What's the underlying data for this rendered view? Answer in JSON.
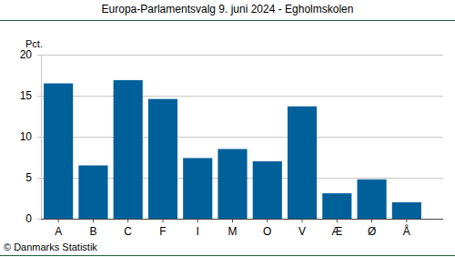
{
  "chart_data": {
    "type": "bar",
    "title": "Europa-Parlamentsvalg 9. juni 2024 - Egholmskolen",
    "ylabel": "Pct.",
    "annotations": [
      "© Danmarks Statistik"
    ],
    "categories": [
      "A",
      "B",
      "C",
      "F",
      "I",
      "M",
      "O",
      "V",
      "Æ",
      "Ø",
      "Å"
    ],
    "values": [
      16.5,
      6.5,
      16.9,
      14.6,
      7.4,
      8.5,
      7.0,
      13.7,
      3.1,
      4.8,
      2.0
    ],
    "color": "#00609a",
    "ylim": [
      0,
      20
    ],
    "yticks": [
      0,
      5,
      10,
      15,
      20
    ],
    "grid": true
  }
}
